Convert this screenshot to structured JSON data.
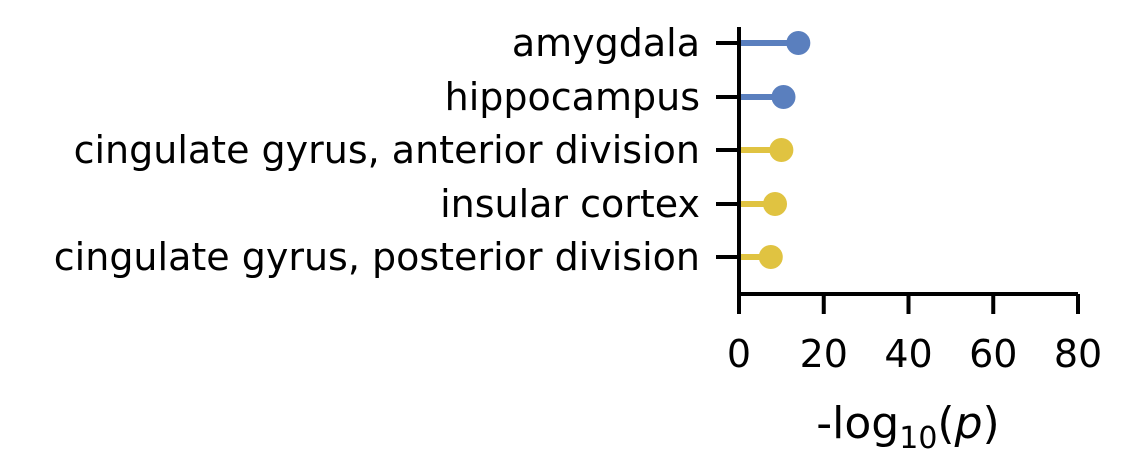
{
  "chart_data": {
    "type": "lollipop",
    "orientation": "horizontal",
    "categories": [
      "amygdala",
      "hippocampus",
      "cingulate gyrus, anterior division",
      "insular cortex",
      "cingulate gyrus, posterior division"
    ],
    "values": [
      14,
      10.5,
      10,
      8.5,
      7.5
    ],
    "colors": [
      "#5a7fbe",
      "#5a7fbe",
      "#e0c341",
      "#e0c341",
      "#e0c341"
    ],
    "xlim": [
      0,
      80
    ],
    "xticks": [
      0,
      20,
      40,
      60,
      80
    ],
    "xtick_labels": [
      "0",
      "20",
      "40",
      "60",
      "80"
    ],
    "xlabel": {
      "prefix": "-log",
      "sub": "10",
      "open": "(",
      "var": "p",
      "close": ")"
    },
    "grid": false,
    "legend": "none"
  }
}
